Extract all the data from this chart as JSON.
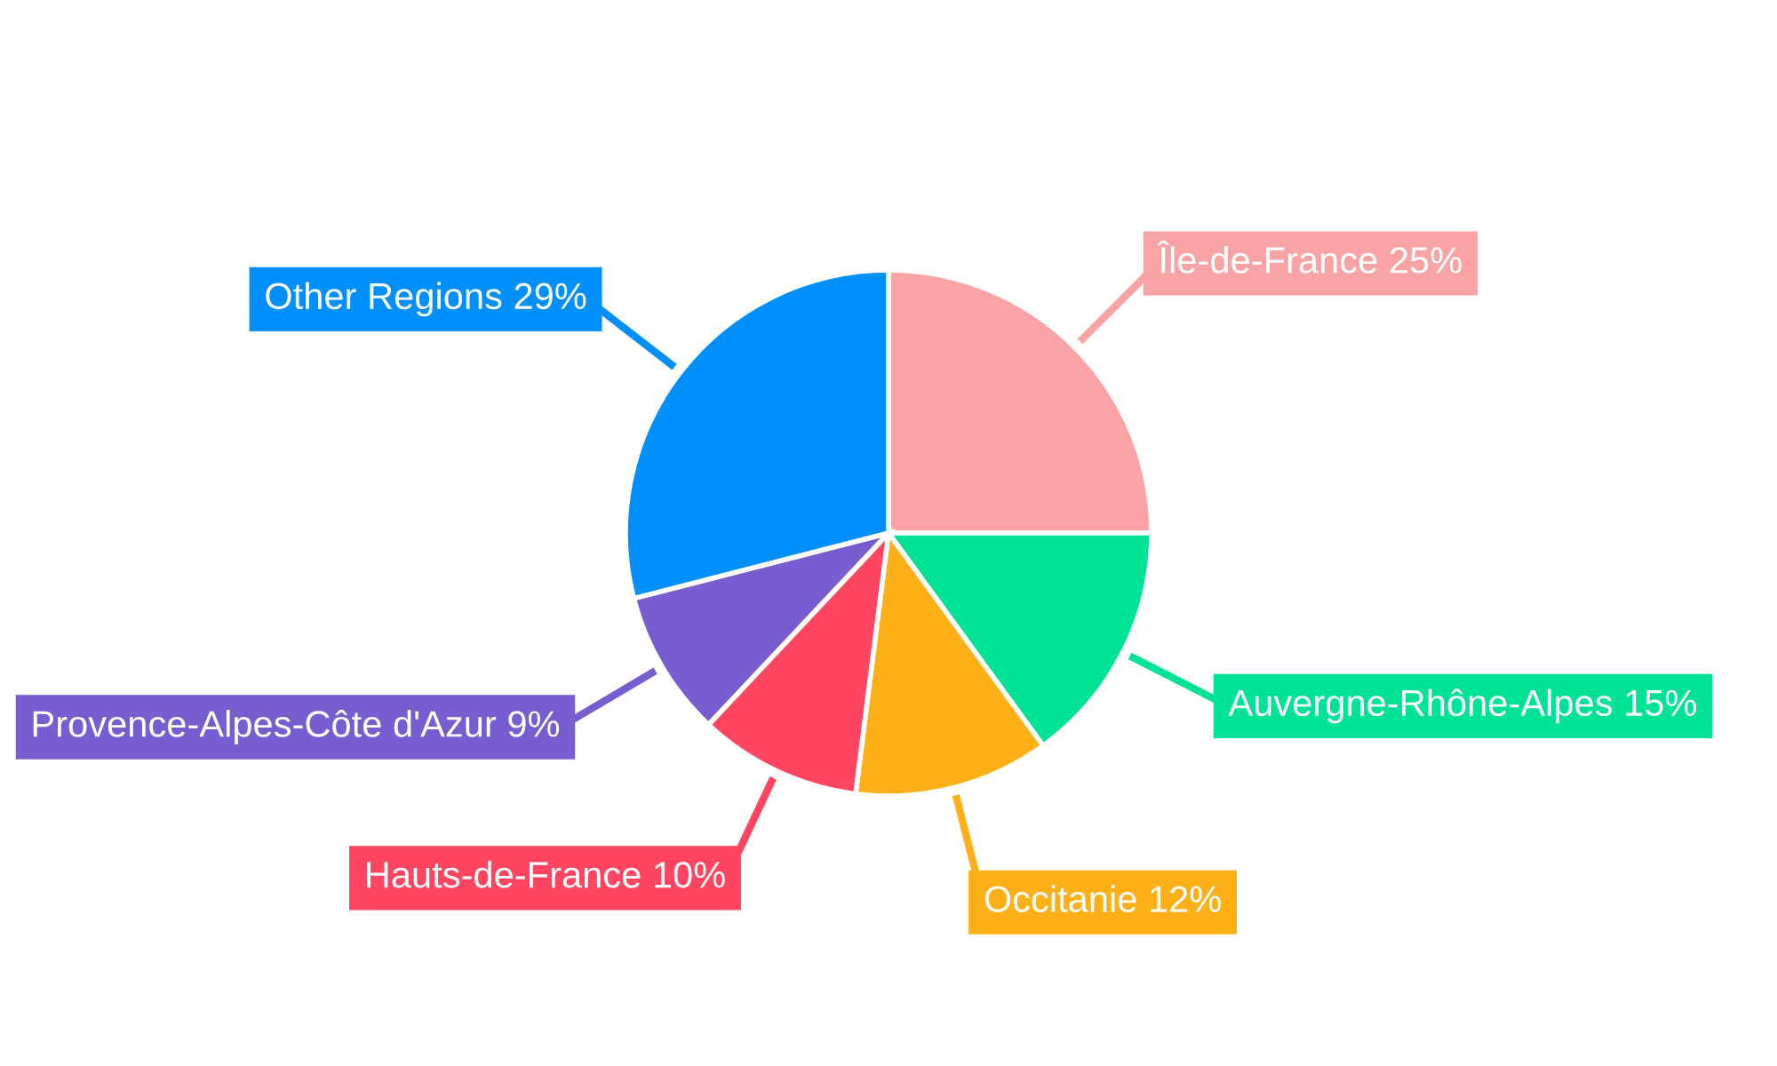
{
  "chart_data": {
    "type": "pie",
    "categories": [
      "Île-de-France",
      "Auvergne-Rhône-Alpes",
      "Occitanie",
      "Hauts-de-France",
      "Provence-Alpes-Côte d'Azur",
      "Other Regions"
    ],
    "values": [
      25,
      15,
      12,
      10,
      9,
      29
    ],
    "value_labels": [
      "25%",
      "15%",
      "12%",
      "10%",
      "9%",
      "29%"
    ],
    "colors": [
      "#f9a3a4",
      "#00e396",
      "#feb019",
      "#ff4560",
      "#775dd0",
      "#008ffb"
    ]
  }
}
